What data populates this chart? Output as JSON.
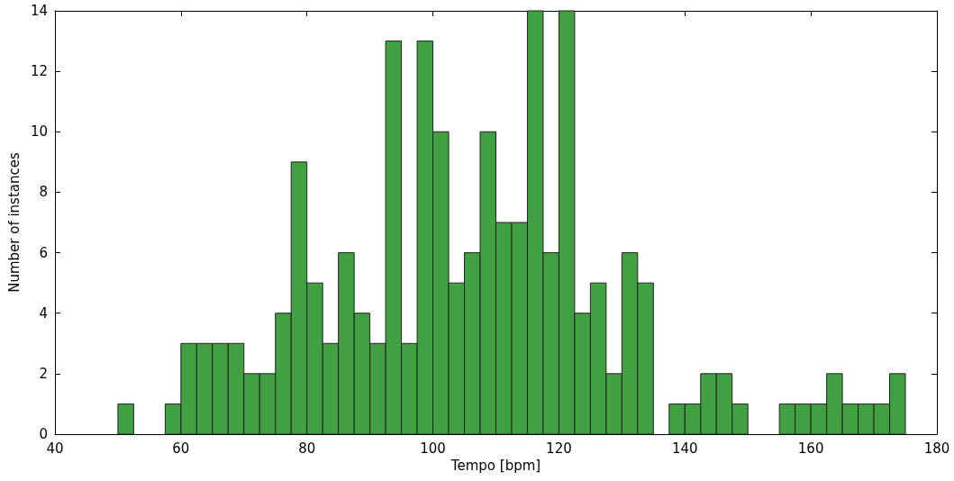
{
  "chart_data": {
    "type": "histogram",
    "xlabel": "Tempo [bpm]",
    "ylabel": "Number of instances",
    "color": "#41a041",
    "bins": [
      50,
      52.5,
      55,
      57.5,
      60,
      62.5,
      65,
      67.5,
      70,
      72.5,
      75,
      77.5,
      80,
      82.5,
      85,
      87.5,
      90,
      92.5,
      95,
      97.5,
      100,
      102.5,
      105,
      107.5,
      110,
      112.5,
      115,
      117.5,
      120,
      122.5,
      125,
      127.5,
      130,
      132.5,
      135,
      137.5,
      140,
      142.5,
      145,
      147.5,
      150,
      152.5,
      155,
      157.5,
      160,
      162.5,
      165,
      167.5,
      170,
      172.5,
      175
    ],
    "values": [
      1,
      0,
      0,
      1,
      3,
      3,
      3,
      3,
      2,
      2,
      4,
      9,
      5,
      3,
      6,
      4,
      3,
      13,
      3,
      13,
      10,
      5,
      6,
      10,
      7,
      7,
      14,
      6,
      14,
      4,
      5,
      2,
      6,
      5,
      0,
      1,
      1,
      2,
      2,
      1,
      0,
      0,
      1,
      1,
      1,
      2,
      1,
      1,
      1,
      2
    ],
    "xlim": [
      40,
      180
    ],
    "xticks": [
      40,
      60,
      80,
      100,
      120,
      140,
      160,
      180
    ],
    "ylim": [
      0,
      14
    ],
    "yticks": [
      0,
      2,
      4,
      6,
      8,
      10,
      12,
      14
    ]
  }
}
